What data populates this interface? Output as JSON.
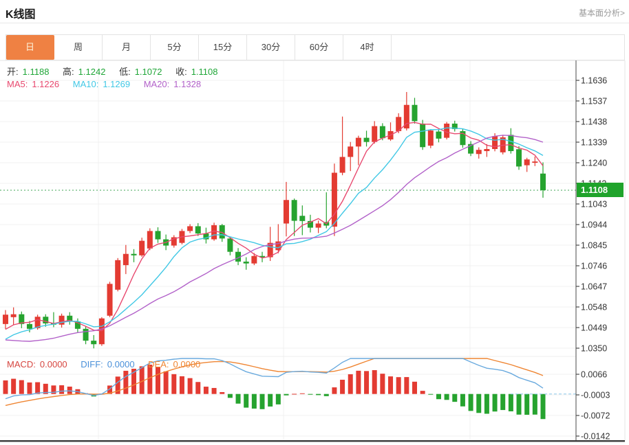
{
  "header": {
    "title": "K线图",
    "analysis_link": "基本面分析>"
  },
  "toolbar": {
    "tabs": [
      {
        "label": "日",
        "active": true
      },
      {
        "label": "周",
        "active": false
      },
      {
        "label": "月",
        "active": false
      },
      {
        "label": "5分",
        "active": false
      },
      {
        "label": "15分",
        "active": false
      },
      {
        "label": "30分",
        "active": false
      },
      {
        "label": "60分",
        "active": false
      },
      {
        "label": "4时",
        "active": false
      }
    ]
  },
  "legend": {
    "ohlc": {
      "open_label": "开:",
      "open": "1.1188",
      "high_label": "高:",
      "high": "1.1242",
      "low_label": "低:",
      "low": "1.1072",
      "close_label": "收:",
      "close": "1.1108"
    },
    "ma": {
      "ma5_label": "MA5:",
      "ma5": "1.1226",
      "ma10_label": "MA10:",
      "ma10": "1.1269",
      "ma20_label": "MA20:",
      "ma20": "1.1328"
    },
    "macd": {
      "macd_label": "MACD:",
      "macd": "0.0000",
      "diff_label": "DIFF:",
      "diff": "0.0000",
      "dea_label": "DEA:",
      "dea": "0.0000"
    }
  },
  "colors": {
    "up": "#e33b32",
    "down": "#26a32f",
    "ma5": "#e8486e",
    "ma10": "#41c8e5",
    "ma20": "#b261c9",
    "diff_line": "#6aaade",
    "dea_line": "#ef8532",
    "grid": "#f1f1f1",
    "axis": "#4a4a4a",
    "tick_text": "#333333",
    "dotted_price": "#3fa653",
    "dashed_zero": "#8bc9ea",
    "tab_accent": "#ef8143",
    "price_tag_bg": "#1fa32b"
  },
  "chart_data": {
    "type": "candlestick_with_macd",
    "title": "K线图",
    "grid": true,
    "legend_position": "top-left-inside",
    "price_axis_ticks": [
      "1.1636",
      "1.1537",
      "1.1438",
      "1.1339",
      "1.1240",
      "1.1142",
      "1.1043",
      "1.0944",
      "1.0845",
      "1.0746",
      "1.0647",
      "1.0548",
      "1.0449",
      "1.0350"
    ],
    "macd_axis_ticks": [
      "0.0066",
      "-0.0003",
      "-0.0072",
      "-0.0142"
    ],
    "price_ylim": [
      1.0314,
      1.1732
    ],
    "current_price": "1.1108",
    "current_price_value": 1.1108,
    "last_candle_ohlc": {
      "open": 1.1188,
      "high": 1.1242,
      "low": 1.1072,
      "close": 1.1108
    },
    "ma_periods": [
      5,
      10,
      20
    ],
    "macd_params": {
      "fast": 12,
      "slow": 26,
      "signal": 9
    },
    "pre_window_closes_est": [
      1.056,
      1.052,
      1.047,
      1.042,
      1.0375,
      1.034,
      1.031,
      1.029,
      1.028,
      1.0285,
      1.03,
      1.032,
      1.0345,
      1.0368,
      1.0388,
      1.0405,
      1.0418,
      1.0428,
      1.0438
    ],
    "candles_ohlc_est": [
      [
        1.0465,
        1.0532,
        1.044,
        1.051
      ],
      [
        1.0498,
        1.0545,
        1.046,
        1.0512
      ],
      [
        1.0512,
        1.0525,
        1.0445,
        1.0465
      ],
      [
        1.0465,
        1.048,
        1.0425,
        1.0442
      ],
      [
        1.0445,
        1.051,
        1.0438,
        1.05
      ],
      [
        1.05,
        1.0512,
        1.0452,
        1.0468
      ],
      [
        1.0468,
        1.0522,
        1.045,
        1.0462
      ],
      [
        1.0462,
        1.0515,
        1.0448,
        1.0505
      ],
      [
        1.0505,
        1.0522,
        1.0462,
        1.0478
      ],
      [
        1.0478,
        1.0492,
        1.0425,
        1.0442
      ],
      [
        1.0442,
        1.0455,
        1.0368,
        1.0385
      ],
      [
        1.0385,
        1.0412,
        1.0348,
        1.0368
      ],
      [
        1.0368,
        1.0498,
        1.036,
        1.0492
      ],
      [
        1.0505,
        1.0668,
        1.0498,
        1.0658
      ],
      [
        1.063,
        1.0782,
        1.0622,
        1.0772
      ],
      [
        1.0748,
        1.0845,
        1.0705,
        1.0802
      ],
      [
        1.0802,
        1.0825,
        1.0762,
        1.0795
      ],
      [
        1.0795,
        1.088,
        1.0788,
        1.0865
      ],
      [
        1.0828,
        1.0925,
        1.082,
        1.0912
      ],
      [
        1.0912,
        1.093,
        1.0855,
        1.0872
      ],
      [
        1.0872,
        1.0895,
        1.082,
        1.0842
      ],
      [
        1.0842,
        1.0892,
        1.0832,
        1.0882
      ],
      [
        1.0855,
        1.0922,
        1.0848,
        1.0912
      ],
      [
        1.0912,
        1.0945,
        1.0902,
        1.0935
      ],
      [
        1.0935,
        1.095,
        1.0888,
        1.09
      ],
      [
        1.09,
        1.0928,
        1.0852,
        1.0872
      ],
      [
        1.0872,
        1.0952,
        1.0865,
        1.094
      ],
      [
        1.094,
        1.0946,
        1.086,
        1.0876
      ],
      [
        1.0876,
        1.0884,
        1.0795,
        1.0812
      ],
      [
        1.0812,
        1.083,
        1.0748,
        1.0765
      ],
      [
        1.0765,
        1.0786,
        1.0726,
        1.0756
      ],
      [
        1.0756,
        1.0806,
        1.0748,
        1.0792
      ],
      [
        1.0792,
        1.0812,
        1.0762,
        1.0786
      ],
      [
        1.0786,
        1.0932,
        1.0768,
        1.0855
      ],
      [
        1.082,
        1.0945,
        1.0805,
        1.0862
      ],
      [
        1.0948,
        1.1148,
        1.0886,
        1.1061
      ],
      [
        1.1061,
        1.1068,
        1.0888,
        1.0961
      ],
      [
        1.0985,
        1.1035,
        1.0892,
        1.096
      ],
      [
        1.096,
        1.099,
        1.0905,
        1.0928
      ],
      [
        1.0928,
        1.0962,
        1.0902,
        1.0948
      ],
      [
        1.0955,
        1.1098,
        1.0925,
        1.0938
      ],
      [
        1.0933,
        1.1236,
        1.0888,
        1.1192
      ],
      [
        1.1192,
        1.1462,
        1.118,
        1.1268
      ],
      [
        1.1268,
        1.134,
        1.12,
        1.1318
      ],
      [
        1.1318,
        1.137,
        1.1228,
        1.136
      ],
      [
        1.136,
        1.1394,
        1.1318,
        1.134
      ],
      [
        1.134,
        1.144,
        1.1332,
        1.1416
      ],
      [
        1.1416,
        1.143,
        1.1348,
        1.1358
      ],
      [
        1.1352,
        1.1434,
        1.1345,
        1.1392
      ],
      [
        1.1392,
        1.1478,
        1.1382,
        1.146
      ],
      [
        1.1405,
        1.158,
        1.1395,
        1.1518
      ],
      [
        1.1518,
        1.1552,
        1.1428,
        1.144
      ],
      [
        1.1428,
        1.1446,
        1.1302,
        1.1315
      ],
      [
        1.1322,
        1.14,
        1.131,
        1.1395
      ],
      [
        1.139,
        1.14,
        1.1338,
        1.1356
      ],
      [
        1.136,
        1.1436,
        1.1352,
        1.1428
      ],
      [
        1.1428,
        1.1442,
        1.139,
        1.1402
      ],
      [
        1.1392,
        1.1404,
        1.1312,
        1.1325
      ],
      [
        1.133,
        1.1344,
        1.1272,
        1.1284
      ],
      [
        1.1282,
        1.1314,
        1.126,
        1.1302
      ],
      [
        1.1296,
        1.133,
        1.1268,
        1.1306
      ],
      [
        1.1306,
        1.1382,
        1.1295,
        1.1368
      ],
      [
        1.129,
        1.1374,
        1.128,
        1.1362
      ],
      [
        1.1374,
        1.1406,
        1.1284,
        1.1296
      ],
      [
        1.1305,
        1.132,
        1.1206,
        1.1222
      ],
      [
        1.1228,
        1.1264,
        1.1196,
        1.1256
      ],
      [
        1.124,
        1.127,
        1.1224,
        1.1246
      ],
      [
        1.1188,
        1.1242,
        1.1072,
        1.1108
      ]
    ]
  }
}
